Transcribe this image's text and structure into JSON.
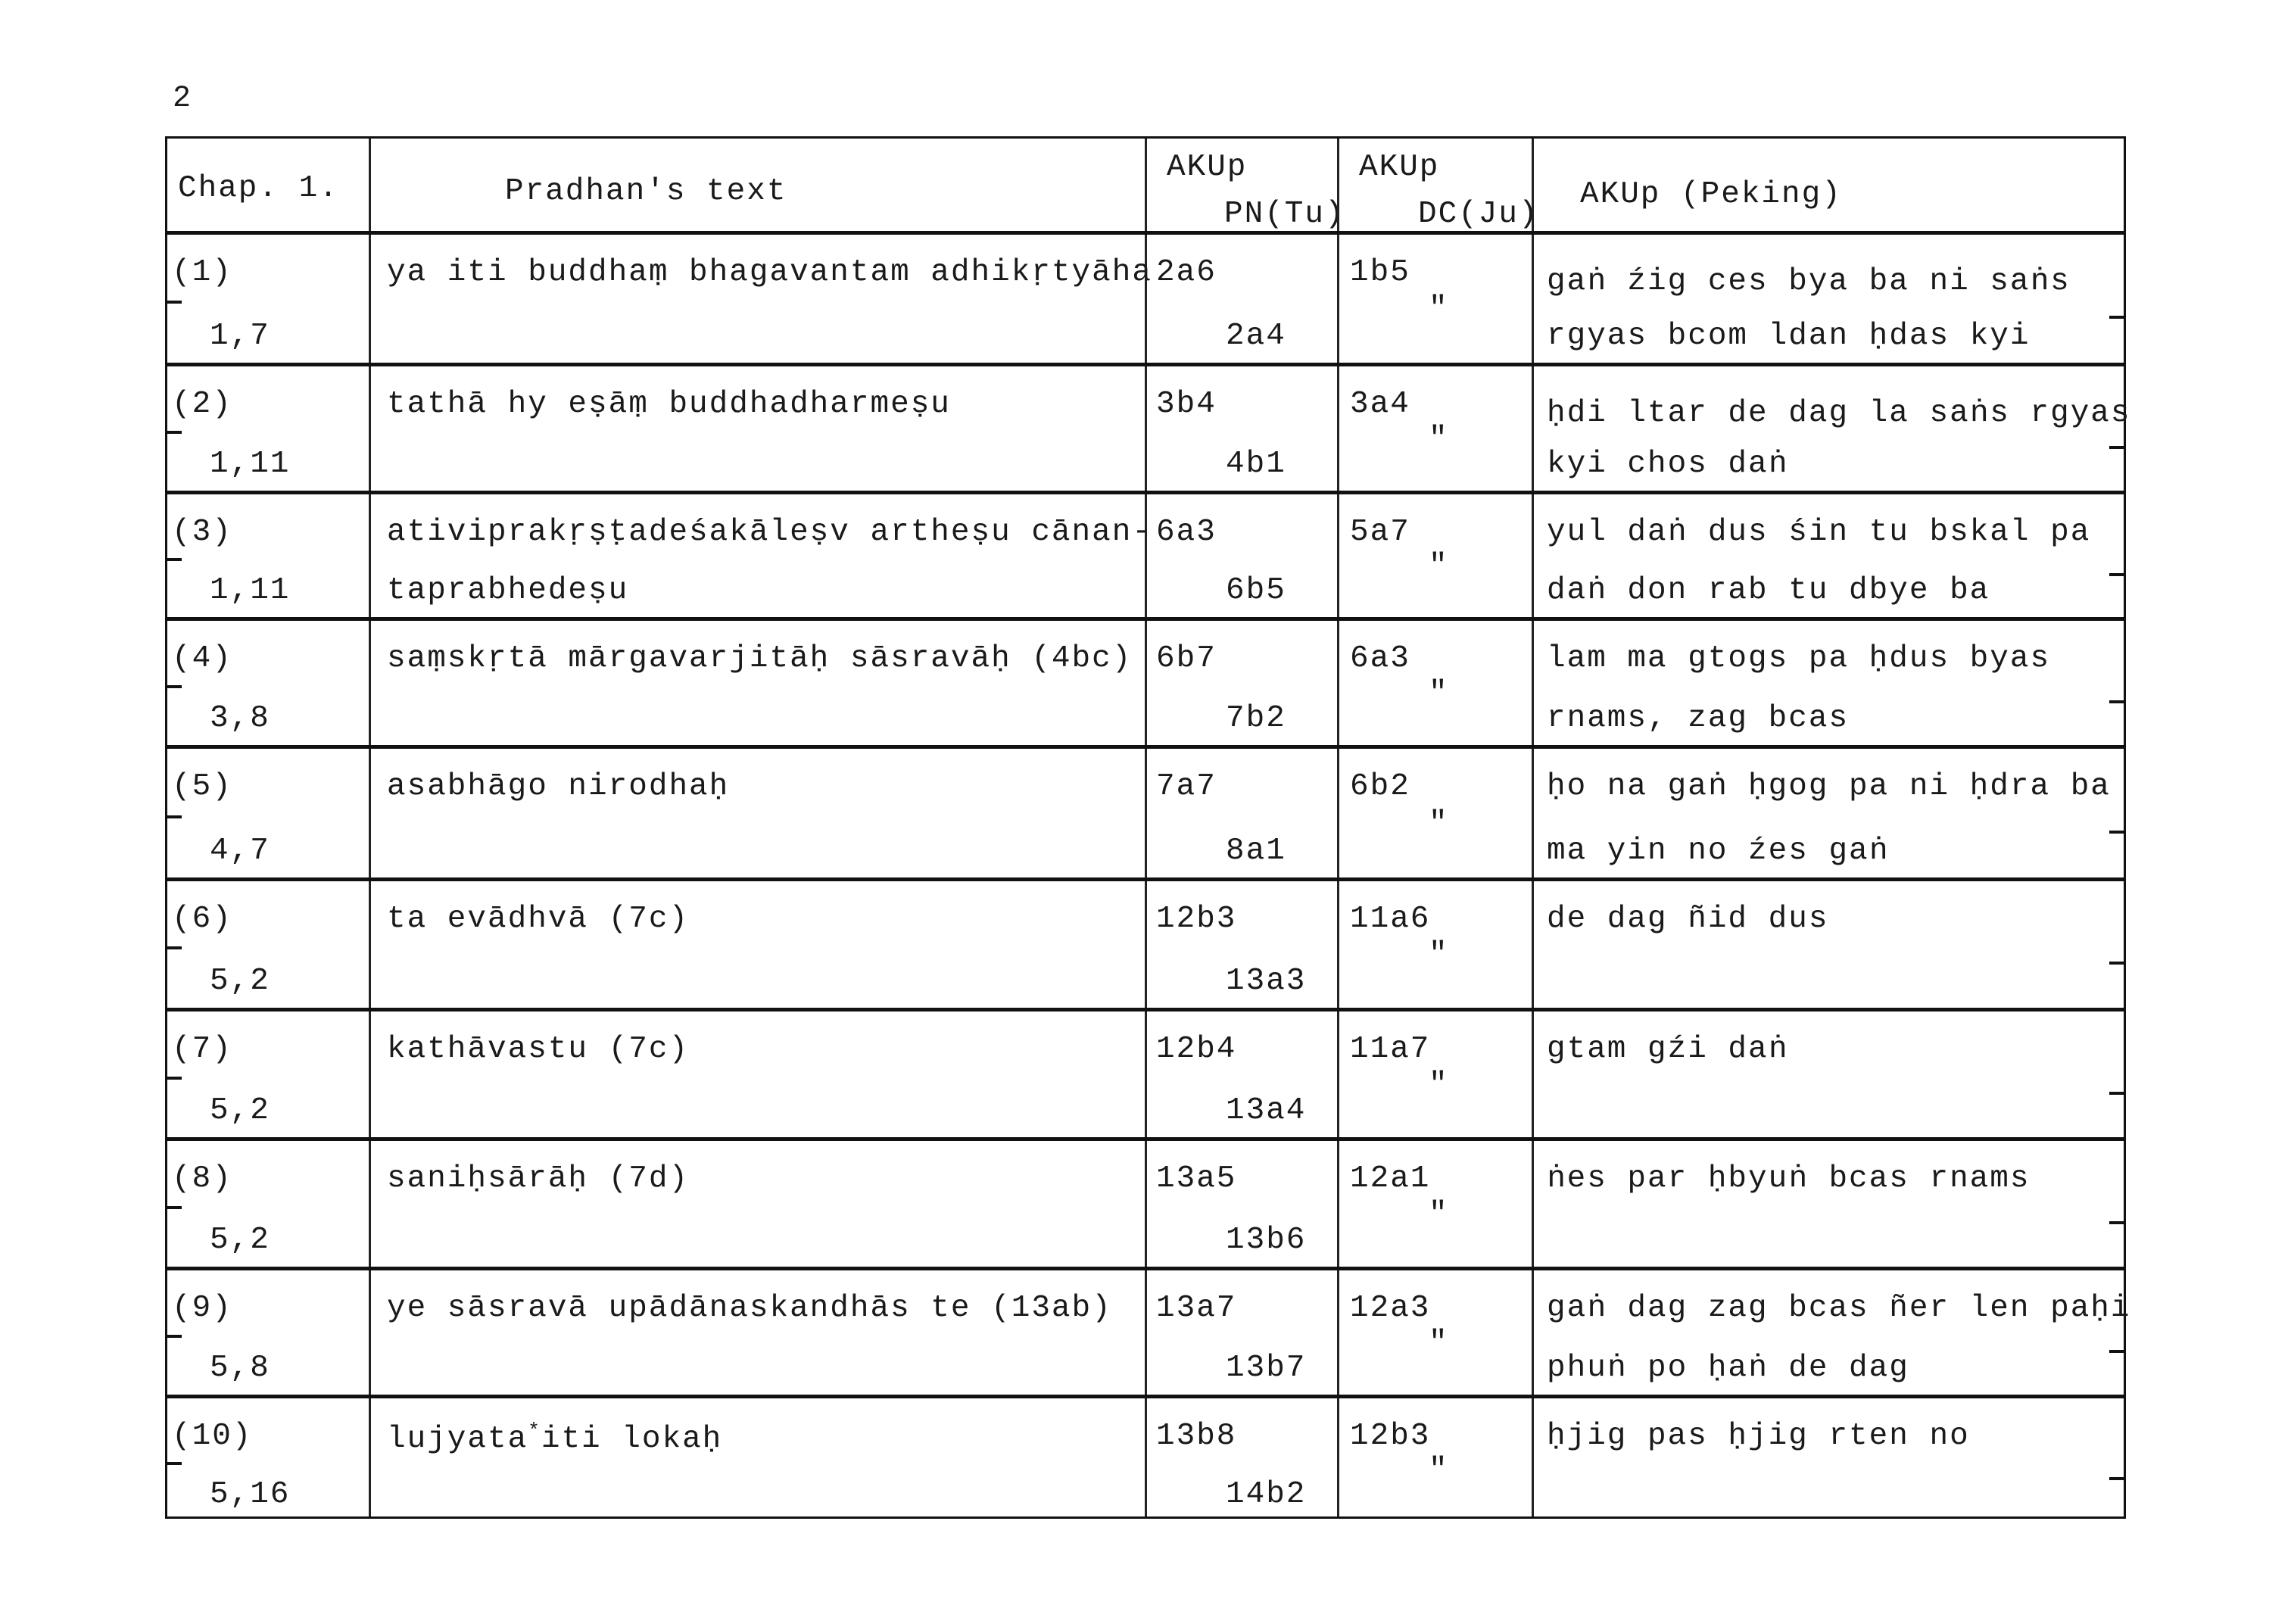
{
  "page_number": "2",
  "header": {
    "chap": "Chap. 1.",
    "pradhan": "Pradhan's text",
    "pn_top": "AKUp",
    "pn_bottom": "PN(Tu)",
    "dc_top": "AKUp",
    "dc_bottom": "DC(Ju)",
    "peking": "AKUp (Peking)"
  },
  "rows": [
    {
      "num": "(1)",
      "ref": "1,7",
      "text": [
        "ya iti buddhaṃ bhagavantam adhikṛtyāha",
        ""
      ],
      "pn": [
        "2a6",
        "2a4"
      ],
      "dc": [
        "1b5",
        "″"
      ],
      "peking": [
        "gaṅ źig ces bya ba ni saṅs",
        "rgyas bcom ldan ḥdas kyi"
      ]
    },
    {
      "num": "(2)",
      "ref": "1,11",
      "text": [
        "tathā hy eṣāṃ buddhadharmeṣu",
        ""
      ],
      "pn": [
        "3b4",
        "4b1"
      ],
      "dc": [
        "3a4",
        "″"
      ],
      "peking": [
        "ḥdi ltar de dag la saṅs rgyas",
        "kyi chos daṅ"
      ]
    },
    {
      "num": "(3)",
      "ref": "1,11",
      "text": [
        "ativiprakṛṣṭadeśakāleṣv artheṣu cānan-",
        "taprabhedeṣu"
      ],
      "pn": [
        "6a3",
        "6b5"
      ],
      "dc": [
        "5a7",
        "″"
      ],
      "peking": [
        "yul daṅ dus śin tu bskal pa",
        "daṅ don rab tu dbye ba"
      ]
    },
    {
      "num": "(4)",
      "ref": "3,8",
      "text": [
        "saṃskṛtā mārgavarjitāḥ  sāsravāḥ (4bc)",
        ""
      ],
      "pn": [
        "6b7",
        "7b2"
      ],
      "dc": [
        "6a3",
        "″"
      ],
      "peking": [
        "lam ma gtogs pa ḥdus byas",
        "rnams, zag bcas"
      ]
    },
    {
      "num": "(5)",
      "ref": "4,7",
      "text": [
        "asabhāgo nirodhaḥ",
        ""
      ],
      "pn": [
        "7a7",
        "8a1"
      ],
      "dc": [
        "6b2",
        "″"
      ],
      "peking": [
        "ḥo na gaṅ ḥgog pa ni ḥdra ba",
        "ma yin no źes gaṅ"
      ]
    },
    {
      "num": "(6)",
      "ref": "5,2",
      "text": [
        "ta evādhvā (7c)",
        ""
      ],
      "pn": [
        "12b3",
        "13a3"
      ],
      "dc": [
        "11a6",
        "″"
      ],
      "peking": [
        "de dag ñid dus",
        ""
      ]
    },
    {
      "num": "(7)",
      "ref": "5,2",
      "text": [
        "kathāvastu (7c)",
        ""
      ],
      "pn": [
        "12b4",
        "13a4"
      ],
      "dc": [
        "11a7",
        "″"
      ],
      "peking": [
        "gtam gźi daṅ",
        ""
      ]
    },
    {
      "num": "(8)",
      "ref": "5,2",
      "text": [
        "saniḥsārāḥ (7d)",
        ""
      ],
      "pn": [
        "13a5",
        "13b6"
      ],
      "dc": [
        "12a1",
        "″"
      ],
      "peking": [
        "ṅes par ḥbyuṅ bcas rnams",
        ""
      ]
    },
    {
      "num": "(9)",
      "ref": "5,8",
      "text": [
        "ye sāsravā upādānaskandhās te (13ab)",
        ""
      ],
      "pn": [
        "13a7",
        "13b7"
      ],
      "dc": [
        "12a3",
        "″"
      ],
      "peking": [
        "gaṅ dag zag bcas ñer len paḥi",
        "phuṅ po ḥaṅ de dag"
      ]
    },
    {
      "num": "(10)",
      "ref": "5,16",
      "text": [
        "lujyata",
        "*",
        "iti lokaḥ"
      ],
      "pn": [
        "13b8",
        "14b2"
      ],
      "dc": [
        "12b3",
        "″"
      ],
      "peking": [
        "ḥjig pas ḥjig rten no",
        ""
      ]
    }
  ]
}
